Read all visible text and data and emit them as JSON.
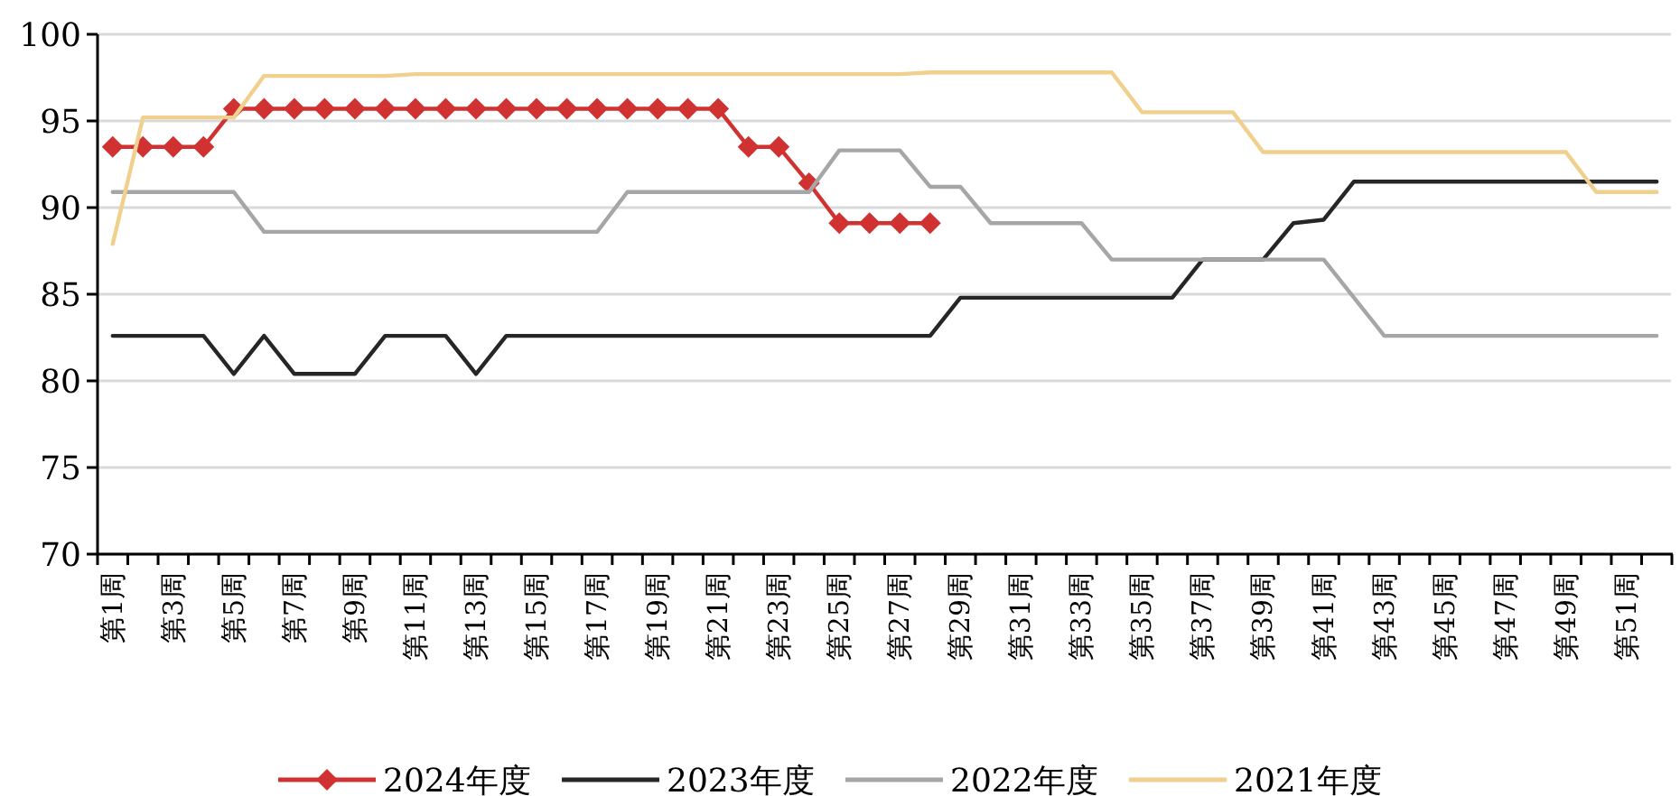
{
  "chart_data": {
    "type": "line",
    "categories": [
      "第1周",
      null,
      "第3周",
      null,
      "第5周",
      null,
      "第7周",
      null,
      "第9周",
      null,
      "第11周",
      null,
      "第13周",
      null,
      "第15周",
      null,
      "第17周",
      null,
      "第19周",
      null,
      "第21周",
      null,
      "第23周",
      null,
      "第25周",
      null,
      "第27周",
      null,
      "第29周",
      null,
      "第31周",
      null,
      "第33周",
      null,
      "第35周",
      null,
      "第37周",
      null,
      "第39周",
      null,
      "第41周",
      null,
      "第43周",
      null,
      "第45周",
      null,
      "第47周",
      null,
      "第49周",
      null,
      "第51周",
      null
    ],
    "series": [
      {
        "name": "2024年度",
        "color": "#d03232",
        "marker": "diamond",
        "values": [
          93.5,
          93.5,
          93.5,
          93.5,
          95.7,
          95.7,
          95.7,
          95.7,
          95.7,
          95.7,
          95.7,
          95.7,
          95.7,
          95.7,
          95.7,
          95.7,
          95.7,
          95.7,
          95.7,
          95.7,
          95.7,
          93.5,
          93.5,
          91.4,
          89.1,
          89.1,
          89.1,
          89.1,
          null,
          null,
          null,
          null,
          null,
          null,
          null,
          null,
          null,
          null,
          null,
          null,
          null,
          null,
          null,
          null,
          null,
          null,
          null,
          null,
          null,
          null,
          null,
          null
        ]
      },
      {
        "name": "2023年度",
        "color": "#262626",
        "values": [
          82.6,
          82.6,
          82.6,
          82.6,
          80.4,
          82.6,
          80.4,
          80.4,
          80.4,
          82.6,
          82.6,
          82.6,
          80.4,
          82.6,
          82.6,
          82.6,
          82.6,
          82.6,
          82.6,
          82.6,
          82.6,
          82.6,
          82.6,
          82.6,
          82.6,
          82.6,
          82.6,
          82.6,
          84.8,
          84.8,
          84.8,
          84.8,
          84.8,
          84.8,
          84.8,
          84.8,
          87.0,
          87.0,
          87.0,
          89.1,
          89.3,
          91.5,
          91.5,
          91.5,
          91.5,
          91.5,
          91.5,
          91.5,
          91.5,
          91.5,
          91.5,
          91.5
        ]
      },
      {
        "name": "2022年度",
        "color": "#a6a6a6",
        "values": [
          90.9,
          90.9,
          90.9,
          90.9,
          90.9,
          88.6,
          88.6,
          88.6,
          88.6,
          88.6,
          88.6,
          88.6,
          88.6,
          88.6,
          88.6,
          88.6,
          88.6,
          90.9,
          90.9,
          90.9,
          90.9,
          90.9,
          90.9,
          90.9,
          93.3,
          93.3,
          93.3,
          91.2,
          91.2,
          89.1,
          89.1,
          89.1,
          89.1,
          87.0,
          87.0,
          87.0,
          87.0,
          87.0,
          87.0,
          87.0,
          87.0,
          84.8,
          82.6,
          82.6,
          82.6,
          82.6,
          82.6,
          82.6,
          82.6,
          82.6,
          82.6,
          82.6
        ]
      },
      {
        "name": "2021年度",
        "color": "#f0d08c",
        "values": [
          87.9,
          95.2,
          95.2,
          95.2,
          95.2,
          97.6,
          97.6,
          97.6,
          97.6,
          97.6,
          97.7,
          97.7,
          97.7,
          97.7,
          97.7,
          97.7,
          97.7,
          97.7,
          97.7,
          97.7,
          97.7,
          97.7,
          97.7,
          97.7,
          97.7,
          97.7,
          97.7,
          97.8,
          97.8,
          97.8,
          97.8,
          97.8,
          97.8,
          97.8,
          95.5,
          95.5,
          95.5,
          95.5,
          93.2,
          93.2,
          93.2,
          93.2,
          93.2,
          93.2,
          93.2,
          93.2,
          93.2,
          93.2,
          93.2,
          90.9,
          90.9,
          90.9
        ]
      }
    ],
    "ylim": [
      70,
      100
    ],
    "yticks": [
      70,
      75,
      80,
      85,
      90,
      95,
      100
    ],
    "grid": "y",
    "legend": "bottom",
    "line_style": "solid"
  }
}
